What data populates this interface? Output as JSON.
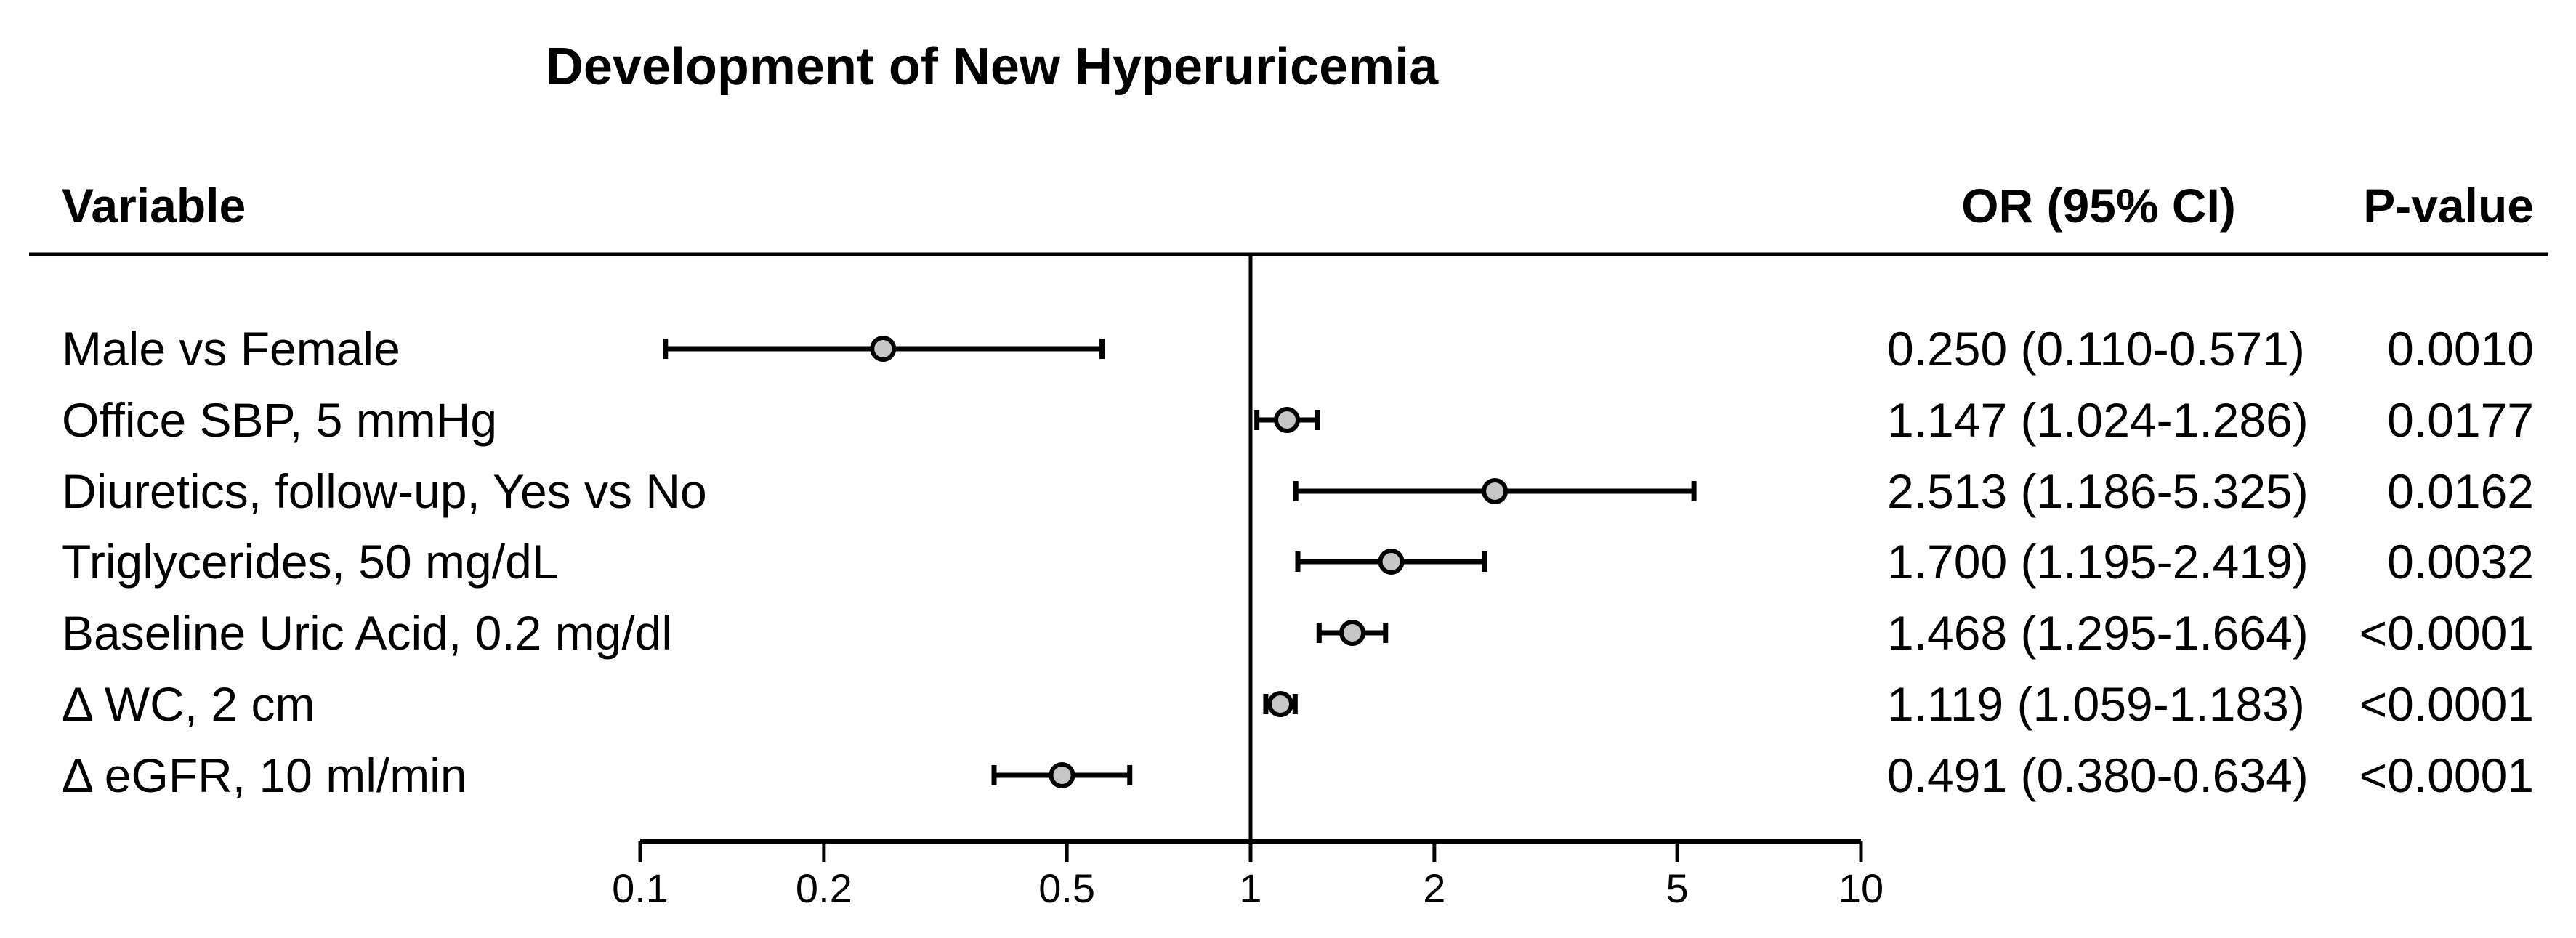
{
  "chart_data": {
    "type": "scatter",
    "subtype": "forest-plot",
    "title": "Development of New Hyperuricemia",
    "columns": {
      "variable": "Variable",
      "or_ci": "OR (95% CI)",
      "p_value": "P-value"
    },
    "rows": [
      {
        "label": "Male vs Female",
        "or": 0.25,
        "ci_low": 0.11,
        "ci_high": 0.571,
        "or_ci_text": "0.250 (0.110-0.571)",
        "p_value": "0.0010"
      },
      {
        "label": "Office SBP, 5 mmHg",
        "or": 1.147,
        "ci_low": 1.024,
        "ci_high": 1.286,
        "or_ci_text": "1.147 (1.024-1.286)",
        "p_value": "0.0177"
      },
      {
        "label": "Diuretics, follow-up, Yes vs No",
        "or": 2.513,
        "ci_low": 1.186,
        "ci_high": 5.325,
        "or_ci_text": "2.513 (1.186-5.325)",
        "p_value": "0.0162"
      },
      {
        "label": "Triglycerides, 50 mg/dL",
        "or": 1.7,
        "ci_low": 1.195,
        "ci_high": 2.419,
        "or_ci_text": "1.700 (1.195-2.419)",
        "p_value": "0.0032"
      },
      {
        "label": "Baseline Uric Acid, 0.2 mg/dl",
        "or": 1.468,
        "ci_low": 1.295,
        "ci_high": 1.664,
        "or_ci_text": "1.468 (1.295-1.664)",
        "p_value": "<0.0001"
      },
      {
        "label": "Δ WC, 2 cm",
        "or": 1.119,
        "ci_low": 1.059,
        "ci_high": 1.183,
        "or_ci_text": "1.119 (1.059-1.183)",
        "p_value": "<0.0001"
      },
      {
        "label": "Δ eGFR, 10 ml/min",
        "or": 0.491,
        "ci_low": 0.38,
        "ci_high": 0.634,
        "or_ci_text": "0.491 (0.380-0.634)",
        "p_value": "<0.0001"
      }
    ],
    "xaxis": {
      "scale": "log",
      "xlim": [
        0.1,
        10
      ],
      "ticks": [
        0.1,
        0.2,
        0.5,
        1,
        2,
        5,
        10
      ],
      "tick_labels": [
        "0.1",
        "0.2",
        "0.5",
        "1",
        "2",
        "5",
        "10"
      ],
      "reference_line": 1
    },
    "grid": false,
    "legend": null,
    "colors": {
      "marker_fill": "#c6c6c6",
      "marker_stroke": "#000000",
      "line": "#000000",
      "text": "#000000",
      "background": "#ffffff"
    }
  }
}
